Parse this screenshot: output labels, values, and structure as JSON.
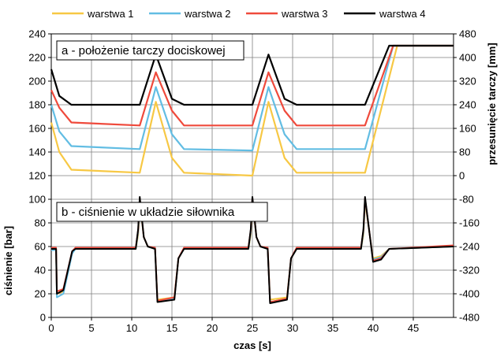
{
  "chart_data": {
    "type": "line",
    "xlabel": "czas [s]",
    "xlim": [
      0,
      50
    ],
    "x_ticks": [
      "0",
      "5",
      "10",
      "15",
      "20",
      "25",
      "30",
      "35",
      "40",
      "45"
    ],
    "grid": true,
    "legend_position": "top",
    "panels": [
      {
        "label": "a - położenie tarczy dociskowej",
        "axis_side": "right",
        "ylabel": "przesunięcie tarczy [mm]",
        "ylim": [
          -480,
          480
        ],
        "y_ticks": [
          "480",
          "400",
          "320",
          "240",
          "160",
          "80",
          "0",
          "-80",
          "-160",
          "-240",
          "-320",
          "-400",
          "-480"
        ],
        "series": [
          {
            "name": "warstwa 1",
            "color": "#f7c844",
            "x": [
              0,
              1,
              2.5,
              11,
              13,
              15,
              16.5,
              25,
              27,
              29,
              30.5,
              39,
              43,
              50
            ],
            "y": [
              180,
              80,
              20,
              10,
              250,
              60,
              10,
              0,
              250,
              60,
              10,
              10,
              440,
              440
            ]
          },
          {
            "name": "warstwa 2",
            "color": "#62bde3",
            "x": [
              0,
              1,
              2.5,
              11,
              13,
              15,
              16.5,
              25,
              27,
              29,
              30.5,
              39,
              42.5,
              50
            ],
            "y": [
              240,
              150,
              100,
              90,
              300,
              140,
              90,
              85,
              300,
              140,
              90,
              90,
              440,
              440
            ]
          },
          {
            "name": "warstwa 3",
            "color": "#ef4a3c",
            "x": [
              0,
              1,
              2.5,
              11,
              13,
              15,
              16.5,
              25,
              27,
              29,
              30.5,
              39,
              42.5,
              50
            ],
            "y": [
              290,
              230,
              180,
              170,
              350,
              220,
              170,
              170,
              350,
              220,
              170,
              170,
              440,
              440
            ]
          },
          {
            "name": "warstwa 4",
            "color": "#000000",
            "x": [
              0,
              1,
              2.5,
              11,
              13,
              15,
              16.5,
              25,
              27,
              29,
              30.5,
              39,
              42,
              50
            ],
            "y": [
              360,
              270,
              240,
              240,
              410,
              260,
              240,
              240,
              410,
              260,
              240,
              240,
              440,
              440
            ]
          }
        ]
      },
      {
        "label": "b - ciśnienie w układzie siłownika",
        "axis_side": "left",
        "ylabel": "ciśnienie [bar]",
        "ylim": [
          0,
          240
        ],
        "y_ticks": [
          "240",
          "220",
          "200",
          "180",
          "160",
          "140",
          "120",
          "100",
          "80",
          "60",
          "40",
          "20",
          "0"
        ],
        "series": [
          {
            "name": "warstwa 1",
            "color": "#f7c844",
            "x": [
              0,
              0.6,
              0.7,
              1.5,
              2.6,
              3,
              10.5,
              10.8,
              11,
              11.5,
              12,
              12.9,
              13.2,
              15.3,
              15.8,
              16.5,
              24.5,
              24.8,
              25,
              25.5,
              26,
              26.9,
              27.2,
              29.3,
              29.8,
              30.5,
              38.5,
              38.8,
              39,
              40,
              41,
              42,
              50
            ],
            "y": [
              58,
              58,
              20,
              22,
              55,
              58,
              58,
              70,
              98,
              68,
              60,
              58,
              15,
              17,
              50,
              58,
              58,
              70,
              98,
              68,
              60,
              58,
              15,
              17,
              50,
              58,
              58,
              70,
              98,
              50,
              52,
              58,
              60
            ]
          },
          {
            "name": "warstwa 2",
            "color": "#62bde3",
            "x": [
              0,
              0.6,
              0.7,
              1.5,
              2.6,
              3,
              10.5,
              10.8,
              11,
              11.5,
              12,
              12.9,
              13.2,
              15.3,
              15.8,
              16.5,
              24.5,
              24.8,
              25,
              25.5,
              26,
              26.9,
              27.2,
              29.3,
              29.8,
              30.5,
              38.5,
              38.8,
              39,
              40,
              41,
              42,
              50
            ],
            "y": [
              57,
              57,
              17,
              20,
              54,
              58,
              58,
              72,
              100,
              68,
              60,
              58,
              14,
              16,
              50,
              58,
              58,
              72,
              100,
              68,
              60,
              58,
              13,
              16,
              50,
              58,
              58,
              72,
              100,
              49,
              51,
              58,
              60
            ]
          },
          {
            "name": "warstwa 3",
            "color": "#ef4a3c",
            "x": [
              0,
              0.6,
              0.7,
              1.5,
              2.6,
              3,
              10.5,
              10.8,
              11,
              11.5,
              12,
              12.9,
              13.2,
              15.3,
              15.8,
              16.5,
              24.5,
              24.8,
              25,
              25.5,
              26,
              26.9,
              27.2,
              29.3,
              29.8,
              30.5,
              38.5,
              38.8,
              39,
              40,
              41,
              42,
              50
            ],
            "y": [
              59,
              59,
              22,
              24,
              56,
              59,
              59,
              74,
              101,
              68,
              60,
              59,
              14,
              17,
              50,
              59,
              59,
              74,
              101,
              68,
              60,
              59,
              13,
              16,
              50,
              59,
              59,
              74,
              101,
              48,
              50,
              58,
              61
            ]
          },
          {
            "name": "warstwa 4",
            "color": "#000000",
            "x": [
              0,
              0.6,
              0.7,
              1.5,
              2.6,
              3,
              10.5,
              10.8,
              11,
              11.5,
              12,
              12.9,
              13.2,
              15.3,
              15.8,
              16.5,
              24.5,
              24.8,
              25,
              25.5,
              26,
              26.9,
              27.2,
              29.3,
              29.8,
              30.5,
              38.5,
              38.8,
              39,
              40,
              41,
              42,
              50
            ],
            "y": [
              58,
              58,
              20,
              23,
              56,
              58,
              58,
              75,
              102,
              68,
              60,
              58,
              13,
              15,
              50,
              58,
              58,
              75,
              102,
              68,
              60,
              58,
              12,
              15,
              50,
              58,
              58,
              75,
              102,
              47,
              49,
              58,
              60
            ]
          }
        ]
      }
    ]
  }
}
